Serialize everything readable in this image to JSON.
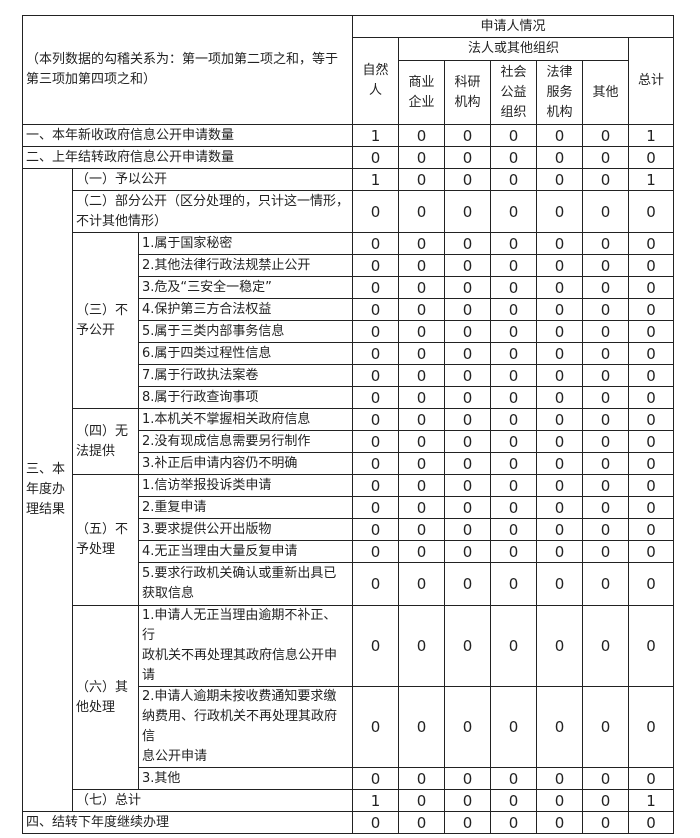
{
  "header": {
    "note": "（本列数据的勾稽关系为：第一项加第二项之和，等于\n第三项加第四项之和）",
    "applicant": "申请人情况",
    "natural": "自然\n人",
    "legal_group": "法人或其他组织",
    "legal_cols": [
      "商业\n企业",
      "科研\n机构",
      "社会\n公益\n组织",
      "法律\n服务\n机构",
      "其他"
    ],
    "total": "总计"
  },
  "rows": [
    {
      "label": "一、本年新收政府信息公开申请数量",
      "values": [
        1,
        0,
        0,
        0,
        0,
        0,
        1
      ]
    },
    {
      "label": "二、上年结转政府信息公开申请数量",
      "values": [
        0,
        0,
        0,
        0,
        0,
        0,
        0
      ]
    }
  ],
  "result": {
    "label": "三、本\n年度办\n理结果",
    "groups": [
      {
        "label": "（一）予以公开",
        "values": [
          1,
          0,
          0,
          0,
          0,
          0,
          1
        ]
      },
      {
        "label": "（二）部分公开（区分处理的，只计这一情形，\n不计其他情形）",
        "values": [
          0,
          0,
          0,
          0,
          0,
          0,
          0
        ]
      },
      {
        "label": "（三）不\n予公开",
        "items": [
          {
            "label": "1.属于国家秘密",
            "values": [
              0,
              0,
              0,
              0,
              0,
              0,
              0
            ]
          },
          {
            "label": "2.其他法律行政法规禁止公开",
            "values": [
              0,
              0,
              0,
              0,
              0,
              0,
              0
            ]
          },
          {
            "label": "3.危及“三安全一稳定”",
            "values": [
              0,
              0,
              0,
              0,
              0,
              0,
              0
            ]
          },
          {
            "label": "4.保护第三方合法权益",
            "values": [
              0,
              0,
              0,
              0,
              0,
              0,
              0
            ]
          },
          {
            "label": "5.属于三类内部事务信息",
            "values": [
              0,
              0,
              0,
              0,
              0,
              0,
              0
            ]
          },
          {
            "label": "6.属于四类过程性信息",
            "values": [
              0,
              0,
              0,
              0,
              0,
              0,
              0
            ]
          },
          {
            "label": "7.属于行政执法案卷",
            "values": [
              0,
              0,
              0,
              0,
              0,
              0,
              0
            ]
          },
          {
            "label": "8.属于行政查询事项",
            "values": [
              0,
              0,
              0,
              0,
              0,
              0,
              0
            ]
          }
        ]
      },
      {
        "label": "（四）无\n法提供",
        "items": [
          {
            "label": "1.本机关不掌握相关政府信息",
            "values": [
              0,
              0,
              0,
              0,
              0,
              0,
              0
            ]
          },
          {
            "label": "2.没有现成信息需要另行制作",
            "values": [
              0,
              0,
              0,
              0,
              0,
              0,
              0
            ]
          },
          {
            "label": "3.补正后申请内容仍不明确",
            "values": [
              0,
              0,
              0,
              0,
              0,
              0,
              0
            ]
          }
        ]
      },
      {
        "label": "（五）不\n予处理",
        "items": [
          {
            "label": "1.信访举报投诉类申请",
            "values": [
              0,
              0,
              0,
              0,
              0,
              0,
              0
            ]
          },
          {
            "label": "2.重复申请",
            "values": [
              0,
              0,
              0,
              0,
              0,
              0,
              0
            ]
          },
          {
            "label": "3.要求提供公开出版物",
            "values": [
              0,
              0,
              0,
              0,
              0,
              0,
              0
            ]
          },
          {
            "label": "4.无正当理由大量反复申请",
            "values": [
              0,
              0,
              0,
              0,
              0,
              0,
              0
            ]
          },
          {
            "label": "5.要求行政机关确认或重新出具已\n获取信息",
            "values": [
              0,
              0,
              0,
              0,
              0,
              0,
              0
            ]
          }
        ]
      },
      {
        "label": "（六）其\n他处理",
        "items": [
          {
            "label": "1.申请人无正当理由逾期不补正、行\n政机关不再处理其政府信息公开申\n请",
            "values": [
              0,
              0,
              0,
              0,
              0,
              0,
              0
            ]
          },
          {
            "label": "2.申请人逾期未按收费通知要求缴\n纳费用、行政机关不再处理其政府信\n息公开申请",
            "values": [
              0,
              0,
              0,
              0,
              0,
              0,
              0
            ]
          },
          {
            "label": "3.其他",
            "values": [
              0,
              0,
              0,
              0,
              0,
              0,
              0
            ]
          }
        ]
      },
      {
        "label": "（七）总计",
        "values": [
          1,
          0,
          0,
          0,
          0,
          0,
          1
        ]
      }
    ]
  },
  "carryover": {
    "label": "四、结转下年度继续办理",
    "values": [
      0,
      0,
      0,
      0,
      0,
      0,
      0
    ]
  }
}
